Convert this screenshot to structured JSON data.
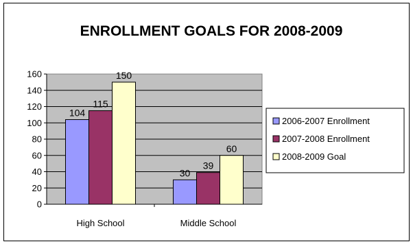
{
  "chart_data": {
    "type": "bar",
    "title": "ENROLLMENT GOALS FOR 2008-2009",
    "xlabel": "",
    "ylabel": "",
    "categories": [
      "High School",
      "Middle School"
    ],
    "series": [
      {
        "name": "2006-2007 Enrollment",
        "values": [
          104,
          30
        ],
        "color": "#9999ff"
      },
      {
        "name": "2007-2008 Enrollment",
        "values": [
          115,
          39
        ],
        "color": "#993366"
      },
      {
        "name": "2008-2009 Goal",
        "values": [
          150,
          60
        ],
        "color": "#ffffcc"
      }
    ],
    "ylim": [
      0,
      160
    ],
    "yticks": [
      0,
      20,
      40,
      60,
      80,
      100,
      120,
      140,
      160
    ],
    "grid": true,
    "plot_background": "#c0c0c0",
    "legend_position": "right",
    "data_labels": true
  }
}
